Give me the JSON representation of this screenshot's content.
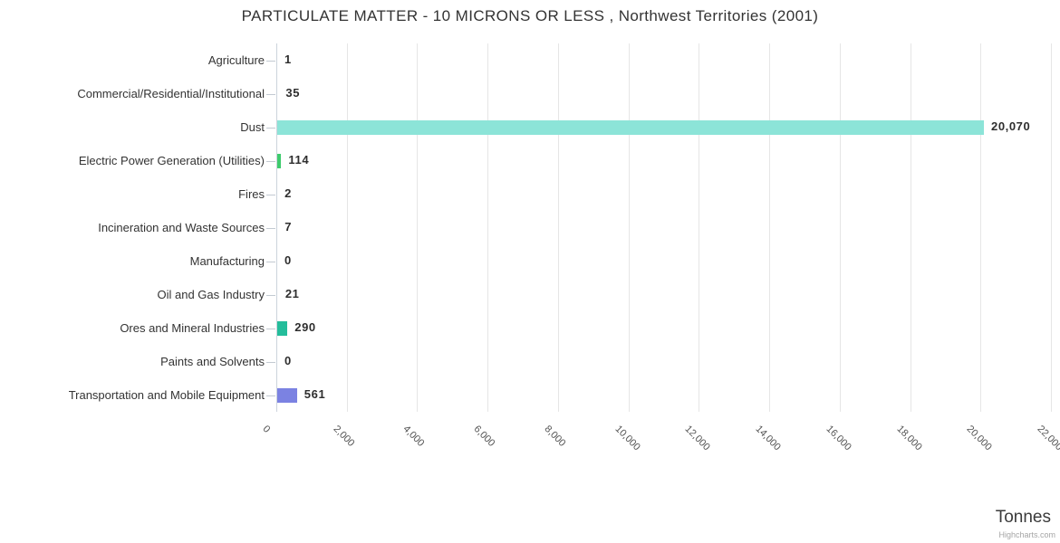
{
  "chart": {
    "title": "PARTICULATE MATTER - 10 MICRONS OR LESS , Northwest Territories (2001)",
    "xaxis_title": "Tonnes",
    "credit": "Highcharts.com"
  },
  "chart_data": {
    "type": "bar",
    "orientation": "horizontal",
    "title": "PARTICULATE MATTER - 10 MICRONS OR LESS , Northwest Territories (2001)",
    "categories": [
      "Agriculture",
      "Commercial/Residential/Institutional",
      "Dust",
      "Electric Power Generation (Utilities)",
      "Fires",
      "Incineration and Waste Sources",
      "Manufacturing",
      "Oil and Gas Industry",
      "Ores and Mineral Industries",
      "Paints and Solvents",
      "Transportation and Mobile Equipment"
    ],
    "values": [
      1,
      35,
      20070,
      114,
      2,
      7,
      0,
      21,
      290,
      0,
      561
    ],
    "value_labels": [
      "1",
      "35",
      "20,070",
      "114",
      "2",
      "7",
      "0",
      "21",
      "290",
      "0",
      "561"
    ],
    "xlabel": "Tonnes",
    "xlim": [
      0,
      22000
    ],
    "xticks": [
      0,
      2000,
      4000,
      6000,
      8000,
      10000,
      12000,
      14000,
      16000,
      18000,
      20000,
      22000
    ],
    "xtick_labels": [
      "0",
      "2,000",
      "4,000",
      "6,000",
      "8,000",
      "10,000",
      "12,000",
      "14,000",
      "16,000",
      "18,000",
      "20,000",
      "22,000"
    ],
    "grid": true,
    "legend_position": "none",
    "bar_colors": {
      "Dust": "#8ce4d8",
      "Electric Power Generation (Utilities)": "#3ecb6d",
      "Ores and Mineral Industries": "#24bd9b",
      "Transportation and Mobile Equipment": "#7b82e2"
    },
    "default_bar_color": "#999999"
  }
}
